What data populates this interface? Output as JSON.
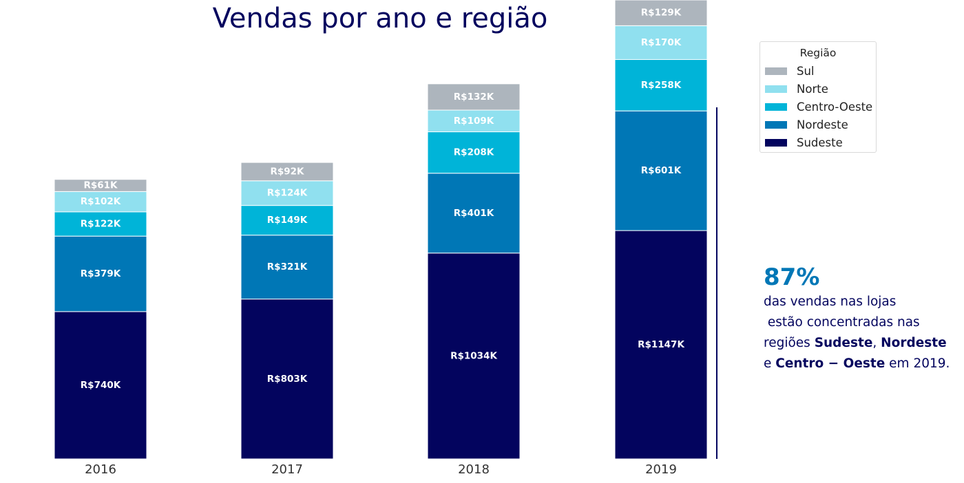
{
  "chart_data": {
    "type": "bar",
    "stacked": true,
    "title": "Vendas por ano e região",
    "categories": [
      "2016",
      "2017",
      "2018",
      "2019"
    ],
    "series": [
      {
        "name": "Sudeste",
        "color": "#03045e",
        "values": [
          740,
          803,
          1034,
          1147
        ],
        "labels": [
          "R$740K",
          "R$803K",
          "R$1034K",
          "R$1147K"
        ]
      },
      {
        "name": "Nordeste",
        "color": "#0077b6",
        "values": [
          379,
          321,
          401,
          601
        ],
        "labels": [
          "R$379K",
          "R$321K",
          "R$401K",
          "R$601K"
        ]
      },
      {
        "name": "Centro-Oeste",
        "color": "#00b4d8",
        "values": [
          122,
          149,
          208,
          258
        ],
        "labels": [
          "R$122K",
          "R$149K",
          "R$208K",
          "R$258K"
        ]
      },
      {
        "name": "Norte",
        "color": "#90e0ef",
        "values": [
          102,
          124,
          109,
          170
        ],
        "labels": [
          "R$102K",
          "R$124K",
          "R$109K",
          "R$170K"
        ]
      },
      {
        "name": "Sul",
        "color": "#adb5bd",
        "values": [
          61,
          92,
          132,
          129
        ],
        "labels": [
          "R$61K",
          "R$92K",
          "R$132K",
          "R$129K"
        ]
      }
    ],
    "ylim": [
      0,
      2305
    ],
    "grid": false,
    "y_axis_visible": false,
    "legend": {
      "title": "Região",
      "placement": "top-right",
      "order": [
        "Sul",
        "Norte",
        "Centro-Oeste",
        "Nordeste",
        "Sudeste"
      ]
    },
    "annotation": {
      "headline": "87%",
      "line1": "das vendas nas lojas",
      "line2": " estão concentradas nas",
      "line3_prefix": "regiões ",
      "line3_bold1": "Sudeste",
      "line3_sep": ", ",
      "line3_bold2": "Nordeste",
      "line4_prefix": "e ",
      "line4_bold": "Centro − Oeste",
      "line4_suffix": " em 2019.",
      "color": "#0077b6",
      "text_color": "#03045e"
    }
  }
}
